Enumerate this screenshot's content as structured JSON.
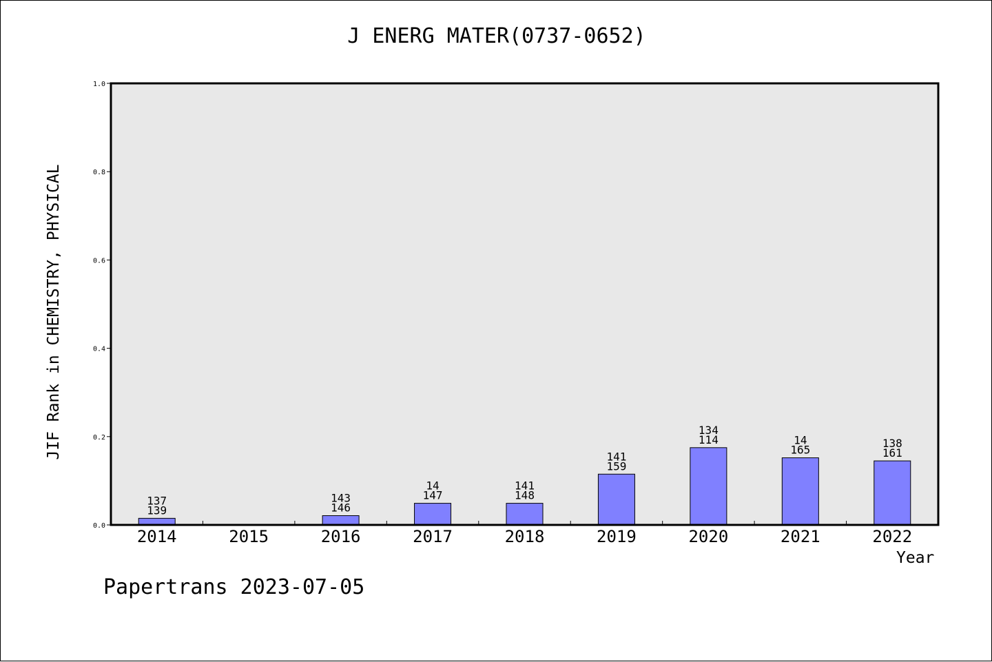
{
  "title": "J ENERG MATER(0737-0652)",
  "footer": "Papertrans 2023-07-05",
  "chart_data": {
    "type": "bar",
    "title": "J ENERG MATER(0737-0652)",
    "xlabel": "Year",
    "ylabel": "JIF Rank in CHEMISTRY, PHYSICAL",
    "ylim": [
      0,
      1.0
    ],
    "yticks": [
      "0.0",
      "0.2",
      "0.4",
      "0.6",
      "0.8",
      "1.0"
    ],
    "grid": false,
    "categories": [
      "2014",
      "2015",
      "2016",
      "2017",
      "2018",
      "2019",
      "2020",
      "2021",
      "2022"
    ],
    "values": [
      0.015,
      null,
      0.021,
      0.049,
      0.049,
      0.115,
      0.175,
      0.152,
      0.145
    ],
    "labels": [
      [
        "137",
        "139"
      ],
      null,
      [
        "143",
        "146"
      ],
      [
        "14",
        "147"
      ],
      [
        "141",
        "148"
      ],
      [
        "141",
        "159"
      ],
      [
        "134",
        "114"
      ],
      [
        "14",
        "165"
      ],
      [
        "138",
        "161"
      ]
    ],
    "bar_color": "#8080ff",
    "plot_background": "#e8e8e8"
  }
}
